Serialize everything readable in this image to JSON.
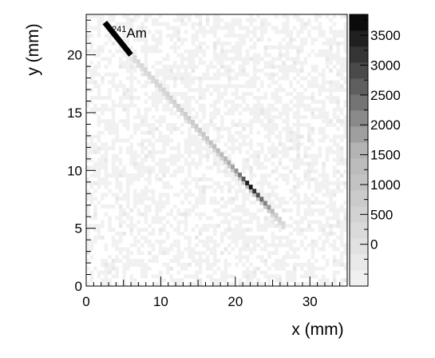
{
  "chart_data": {
    "type": "heatmap",
    "title": "",
    "xlabel": "x (mm)",
    "ylabel": "y (mm)",
    "xlim": [
      0,
      35
    ],
    "ylim": [
      0,
      23.5
    ],
    "x_ticks": [
      "0",
      "10",
      "20",
      "30"
    ],
    "y_ticks": [
      "0",
      "5",
      "10",
      "15",
      "20"
    ],
    "colorbar": {
      "range": [
        -700,
        3850
      ],
      "tick_labels": [
        "0",
        "500",
        "1000",
        "1500",
        "2000",
        "2500",
        "3000",
        "3500"
      ],
      "palette": "grayscale (light = low, black = high)"
    },
    "annotation": "241Am",
    "cells": {
      "background_level": 0,
      "track": {
        "start": [
          6.5,
          19.8
        ],
        "end": [
          26.5,
          5.4
        ],
        "intensity_points": [
          {
            "x": 7,
            "y": 19.4,
            "value": 250
          },
          {
            "x": 10,
            "y": 17.3,
            "value": 450
          },
          {
            "x": 13,
            "y": 15.2,
            "value": 650
          },
          {
            "x": 16,
            "y": 13.0,
            "value": 950
          },
          {
            "x": 18,
            "y": 11.5,
            "value": 1350
          },
          {
            "x": 20,
            "y": 10.1,
            "value": 1900
          },
          {
            "x": 21,
            "y": 9.3,
            "value": 2600
          },
          {
            "x": 21.8,
            "y": 8.7,
            "value": 3800
          },
          {
            "x": 23,
            "y": 7.8,
            "value": 2800
          },
          {
            "x": 24.5,
            "y": 6.6,
            "value": 1900
          },
          {
            "x": 25.5,
            "y": 5.9,
            "value": 700
          },
          {
            "x": 26.5,
            "y": 5.4,
            "value": 300
          }
        ]
      }
    },
    "source_marker": {
      "from": [
        2.5,
        22.8
      ],
      "to": [
        6,
        20
      ]
    },
    "colors": {
      "background": "#ffffff",
      "axis": "#000000",
      "marker": "#000000"
    }
  }
}
